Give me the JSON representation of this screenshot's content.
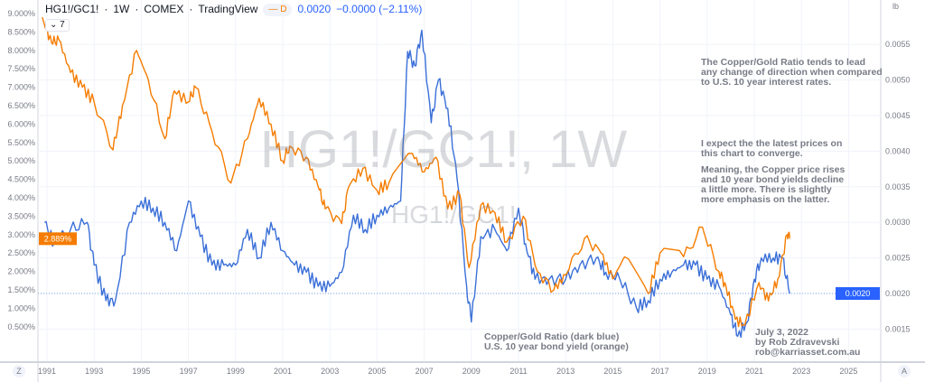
{
  "header": {
    "symbol": "HG1!/GC1!",
    "interval": "1W",
    "exchange": "COMEX",
    "source": "TradingView",
    "badge": "D",
    "last": "0.0020",
    "change": "−0.0000 (−2.11%)",
    "indicators_toggle": "7"
  },
  "watermark": {
    "line1": "HG1!/GC1!, 1W",
    "line2": "HG1!/GC1!"
  },
  "annotations": {
    "a1": [
      "The Copper/Gold Ratio tends to lead",
      "any change of direction when compared",
      "to U.S. 10 year interest rates."
    ],
    "a2": [
      "I expect the the latest prices on",
      "this chart to converge."
    ],
    "a3": [
      "Meaning, the Copper price rises",
      "and 10 year bond yields decline",
      "a little more. There is slightly",
      "more emphasis on the latter."
    ],
    "legend": [
      "Copper/Gold Ratio (dark blue)",
      "U.S. 10 year bond yield (orange)"
    ],
    "credit": [
      "July 3, 2022",
      "by Rob Zdravevski",
      "rob@karriasset.com.au"
    ]
  },
  "axis_buttons": {
    "left": "Z",
    "right": "A"
  },
  "chart_data": {
    "type": "line",
    "title": "HG1!/GC1!, 1W",
    "x_ticks": [
      "1991",
      "1993",
      "1995",
      "1997",
      "1999",
      "2001",
      "2003",
      "2005",
      "2007",
      "2009",
      "2011",
      "2013",
      "2015",
      "2017",
      "2019",
      "2021",
      "2023",
      "2025"
    ],
    "left_axis": {
      "ticks": [
        "9.000%",
        "8.500%",
        "8.000%",
        "7.500%",
        "7.000%",
        "6.500%",
        "6.000%",
        "5.500%",
        "5.000%",
        "4.500%",
        "4.000%",
        "3.500%",
        "3.000%",
        "2.500%",
        "2.000%",
        "1.500%",
        "1.000%",
        "0.500%"
      ],
      "range": [
        0.1,
        9.4
      ],
      "current_label": "2.889%"
    },
    "right_axis": {
      "unit": "lb",
      "ticks": [
        "0.0055",
        "0.0050",
        "0.0045",
        "0.0040",
        "0.0035",
        "0.0030",
        "0.0025",
        "0.0020",
        "0.0015"
      ],
      "range": [
        0.00115,
        0.0059
      ],
      "current_label": "0.0020"
    },
    "colors": {
      "ratio": "#3a6fd8",
      "yield": "#f57c00"
    },
    "series": [
      {
        "name": "Copper/Gold Ratio",
        "axis": "right",
        "points": [
          [
            1990.9,
            0.003
          ],
          [
            1991.3,
            0.0027
          ],
          [
            1992,
            0.0029
          ],
          [
            1992.7,
            0.003
          ],
          [
            1993,
            0.0024
          ],
          [
            1993.5,
            0.0019
          ],
          [
            1993.9,
            0.0019
          ],
          [
            1994.5,
            0.003
          ],
          [
            1995,
            0.0033
          ],
          [
            1995.5,
            0.0032
          ],
          [
            1996,
            0.003
          ],
          [
            1996.5,
            0.0026
          ],
          [
            1997,
            0.0033
          ],
          [
            1997.5,
            0.0028
          ],
          [
            1998,
            0.0024
          ],
          [
            1998.5,
            0.0024
          ],
          [
            1999,
            0.0024
          ],
          [
            1999.5,
            0.0029
          ],
          [
            2000,
            0.0025
          ],
          [
            2000.5,
            0.003
          ],
          [
            2001,
            0.0026
          ],
          [
            2001.5,
            0.0024
          ],
          [
            2002,
            0.0023
          ],
          [
            2002.5,
            0.0021
          ],
          [
            2003,
            0.0021
          ],
          [
            2003.5,
            0.0023
          ],
          [
            2004,
            0.0031
          ],
          [
            2004.5,
            0.0029
          ],
          [
            2005,
            0.0031
          ],
          [
            2005.5,
            0.0032
          ],
          [
            2006,
            0.0033
          ],
          [
            2006.3,
            0.0054
          ],
          [
            2006.6,
            0.0052
          ],
          [
            2006.9,
            0.0057
          ],
          [
            2007.3,
            0.0044
          ],
          [
            2007.6,
            0.005
          ],
          [
            2008,
            0.0046
          ],
          [
            2008.4,
            0.0036
          ],
          [
            2008.8,
            0.0021
          ],
          [
            2009,
            0.0016
          ],
          [
            2009.4,
            0.0028
          ],
          [
            2010,
            0.0029
          ],
          [
            2010.5,
            0.0026
          ],
          [
            2011,
            0.0032
          ],
          [
            2011.3,
            0.0027
          ],
          [
            2011.7,
            0.0022
          ],
          [
            2012.3,
            0.0022
          ],
          [
            2013,
            0.0022
          ],
          [
            2013.6,
            0.0024
          ],
          [
            2014.3,
            0.0025
          ],
          [
            2014.7,
            0.0023
          ],
          [
            2015.3,
            0.0022
          ],
          [
            2016,
            0.0018
          ],
          [
            2016.5,
            0.0019
          ],
          [
            2017,
            0.0022
          ],
          [
            2017.5,
            0.0023
          ],
          [
            2018,
            0.0024
          ],
          [
            2018.5,
            0.0024
          ],
          [
            2019,
            0.0022
          ],
          [
            2019.5,
            0.0021
          ],
          [
            2020,
            0.0017
          ],
          [
            2020.3,
            0.0014
          ],
          [
            2020.7,
            0.0016
          ],
          [
            2021,
            0.0022
          ],
          [
            2021.3,
            0.0025
          ],
          [
            2021.8,
            0.0025
          ],
          [
            2022.2,
            0.0025
          ],
          [
            2022.5,
            0.002
          ]
        ]
      },
      {
        "name": "U.S. 10 year bond yield",
        "axis": "left",
        "points": [
          [
            1990.8,
            8.9
          ],
          [
            1991.2,
            8.2
          ],
          [
            1991.5,
            8.3
          ],
          [
            1992,
            7.4
          ],
          [
            1992.5,
            7.0
          ],
          [
            1993,
            6.6
          ],
          [
            1993.8,
            5.3
          ],
          [
            1994.2,
            6.5
          ],
          [
            1994.8,
            8.0
          ],
          [
            1995.3,
            7.2
          ],
          [
            1996,
            5.6
          ],
          [
            1996.4,
            6.9
          ],
          [
            1997,
            6.6
          ],
          [
            1997.3,
            7.0
          ],
          [
            1998,
            5.8
          ],
          [
            1998.8,
            4.4
          ],
          [
            1999.5,
            5.6
          ],
          [
            2000,
            6.7
          ],
          [
            2000.5,
            6.0
          ],
          [
            2001,
            5.0
          ],
          [
            2001.3,
            5.4
          ],
          [
            2002,
            5.1
          ],
          [
            2002.5,
            4.3
          ],
          [
            2002.8,
            3.7
          ],
          [
            2003.5,
            3.3
          ],
          [
            2003.8,
            4.3
          ],
          [
            2004.4,
            4.8
          ],
          [
            2005,
            4.2
          ],
          [
            2005.5,
            4.4
          ],
          [
            2006.5,
            5.2
          ],
          [
            2007,
            4.7
          ],
          [
            2007.5,
            5.1
          ],
          [
            2008,
            3.7
          ],
          [
            2008.5,
            4.1
          ],
          [
            2008.9,
            2.1
          ],
          [
            2009.4,
            3.8
          ],
          [
            2010,
            3.6
          ],
          [
            2010.5,
            2.8
          ],
          [
            2011.2,
            3.5
          ],
          [
            2011.8,
            2.0
          ],
          [
            2012.5,
            1.5
          ],
          [
            2013,
            1.9
          ],
          [
            2013.8,
            2.9
          ],
          [
            2014.5,
            2.5
          ],
          [
            2015,
            1.8
          ],
          [
            2015.5,
            2.4
          ],
          [
            2016.5,
            1.4
          ],
          [
            2017,
            2.5
          ],
          [
            2018,
            2.4
          ],
          [
            2018.8,
            3.2
          ],
          [
            2019.5,
            2.0
          ],
          [
            2019.8,
            1.6
          ],
          [
            2020.2,
            0.7
          ],
          [
            2020.6,
            0.55
          ],
          [
            2021.2,
            1.7
          ],
          [
            2021.6,
            1.2
          ],
          [
            2022,
            1.8
          ],
          [
            2022.4,
            3.0
          ],
          [
            2022.5,
            2.889
          ]
        ]
      }
    ]
  }
}
